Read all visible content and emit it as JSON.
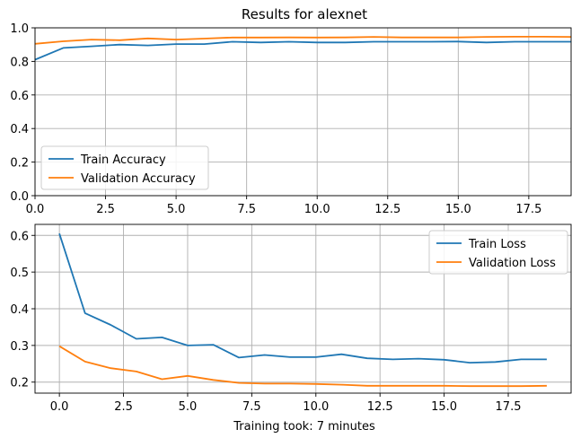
{
  "figure": {
    "xlabel": "Training took: 7 minutes"
  },
  "colors": {
    "train": "#1f77b4",
    "validation": "#ff7f0e",
    "grid": "#b0b0b0",
    "axes": "#000000"
  },
  "chart_data": [
    {
      "type": "line",
      "title": "Results for alexnet",
      "xlabel": "",
      "ylabel": "",
      "xlim": [
        0,
        19
      ],
      "ylim": [
        0,
        1.0
      ],
      "xticks": [
        0,
        2.5,
        5,
        7.5,
        10,
        12.5,
        15,
        17.5
      ],
      "xtick_labels": [
        "0.0",
        "2.5",
        "5.0",
        "7.5",
        "10.0",
        "12.5",
        "15.0",
        "17.5"
      ],
      "yticks": [
        0,
        0.2,
        0.4,
        0.6,
        0.8,
        1.0
      ],
      "ytick_labels": [
        "0.0",
        "0.2",
        "0.4",
        "0.6",
        "0.8",
        "1.0"
      ],
      "grid": true,
      "legend_position": "lower-left",
      "x": [
        0,
        1,
        2,
        3,
        4,
        5,
        6,
        7,
        8,
        9,
        10,
        11,
        12,
        13,
        14,
        15,
        16,
        17,
        18,
        19
      ],
      "series": [
        {
          "name": "Train Accuracy",
          "color": "#1f77b4",
          "values": [
            0.81,
            0.88,
            0.89,
            0.9,
            0.895,
            0.903,
            0.903,
            0.917,
            0.913,
            0.917,
            0.913,
            0.913,
            0.917,
            0.917,
            0.917,
            0.918,
            0.913,
            0.917,
            0.917,
            0.917
          ]
        },
        {
          "name": "Validation Accuracy",
          "color": "#ff7f0e",
          "values": [
            0.905,
            0.92,
            0.93,
            0.926,
            0.937,
            0.93,
            0.936,
            0.942,
            0.942,
            0.943,
            0.942,
            0.943,
            0.946,
            0.943,
            0.943,
            0.943,
            0.946,
            0.947,
            0.947,
            0.946
          ]
        }
      ]
    },
    {
      "type": "line",
      "title": "",
      "xlabel": "Training took: 7 minutes",
      "ylabel": "",
      "xlim": [
        -0.95,
        19.95
      ],
      "ylim": [
        0.17,
        0.63
      ],
      "xticks": [
        0,
        2.5,
        5,
        7.5,
        10,
        12.5,
        15,
        17.5
      ],
      "xtick_labels": [
        "0.0",
        "2.5",
        "5.0",
        "7.5",
        "10.0",
        "12.5",
        "15.0",
        "17.5"
      ],
      "yticks": [
        0.2,
        0.3,
        0.4,
        0.5,
        0.6
      ],
      "ytick_labels": [
        "0.2",
        "0.3",
        "0.4",
        "0.5",
        "0.6"
      ],
      "grid": true,
      "legend_position": "upper-right",
      "x": [
        0,
        1,
        2,
        3,
        4,
        5,
        6,
        7,
        8,
        9,
        10,
        11,
        12,
        13,
        14,
        15,
        16,
        17,
        18,
        19
      ],
      "series": [
        {
          "name": "Train Loss",
          "color": "#1f77b4",
          "values": [
            0.605,
            0.388,
            0.356,
            0.318,
            0.322,
            0.3,
            0.302,
            0.267,
            0.274,
            0.268,
            0.268,
            0.276,
            0.265,
            0.262,
            0.264,
            0.261,
            0.253,
            0.255,
            0.262,
            0.262
          ]
        },
        {
          "name": "Validation Loss",
          "color": "#ff7f0e",
          "values": [
            0.298,
            0.256,
            0.238,
            0.229,
            0.208,
            0.217,
            0.206,
            0.198,
            0.196,
            0.196,
            0.195,
            0.193,
            0.19,
            0.19,
            0.19,
            0.19,
            0.189,
            0.189,
            0.189,
            0.19
          ]
        }
      ]
    }
  ]
}
